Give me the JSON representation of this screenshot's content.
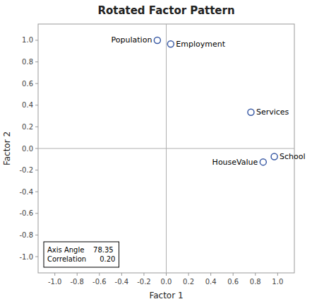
{
  "chart_data": {
    "type": "scatter",
    "title": "Rotated Factor Pattern",
    "x_label": "Factor 1",
    "y_label": "Factor 2",
    "labels": [
      "Population",
      "Employment",
      "Services",
      "School",
      "HouseValue"
    ],
    "x": [
      -0.08,
      0.04,
      0.76,
      0.97,
      0.87
    ],
    "values": [
      1.0,
      0.965,
      0.335,
      -0.075,
      -0.125
    ],
    "color": "#3B5BA5",
    "marker": "open-circle",
    "grid": false,
    "xlim": [
      -1.15,
      1.15
    ],
    "ylim": [
      -1.15,
      1.15
    ],
    "xticks": [
      {
        "value": -1.0,
        "label": "-1.0"
      },
      -0.8,
      -0.6,
      -0.4,
      -0.2,
      {
        "value": 0.0,
        "label": "0.0"
      },
      0.2,
      0.4,
      0.6,
      0.8,
      {
        "value": 1.0,
        "label": "1.0"
      }
    ],
    "yticks": [
      {
        "value": -1.0,
        "label": "-1.0"
      },
      -0.8,
      -0.6,
      -0.4,
      -0.2,
      {
        "value": 0.0,
        "label": "0.0"
      },
      0.2,
      0.4,
      0.6,
      0.8,
      {
        "value": 1.0,
        "label": "1.0"
      }
    ],
    "annotations": [
      "Axis Angle    78.35",
      "Correlation      0.20"
    ]
  }
}
